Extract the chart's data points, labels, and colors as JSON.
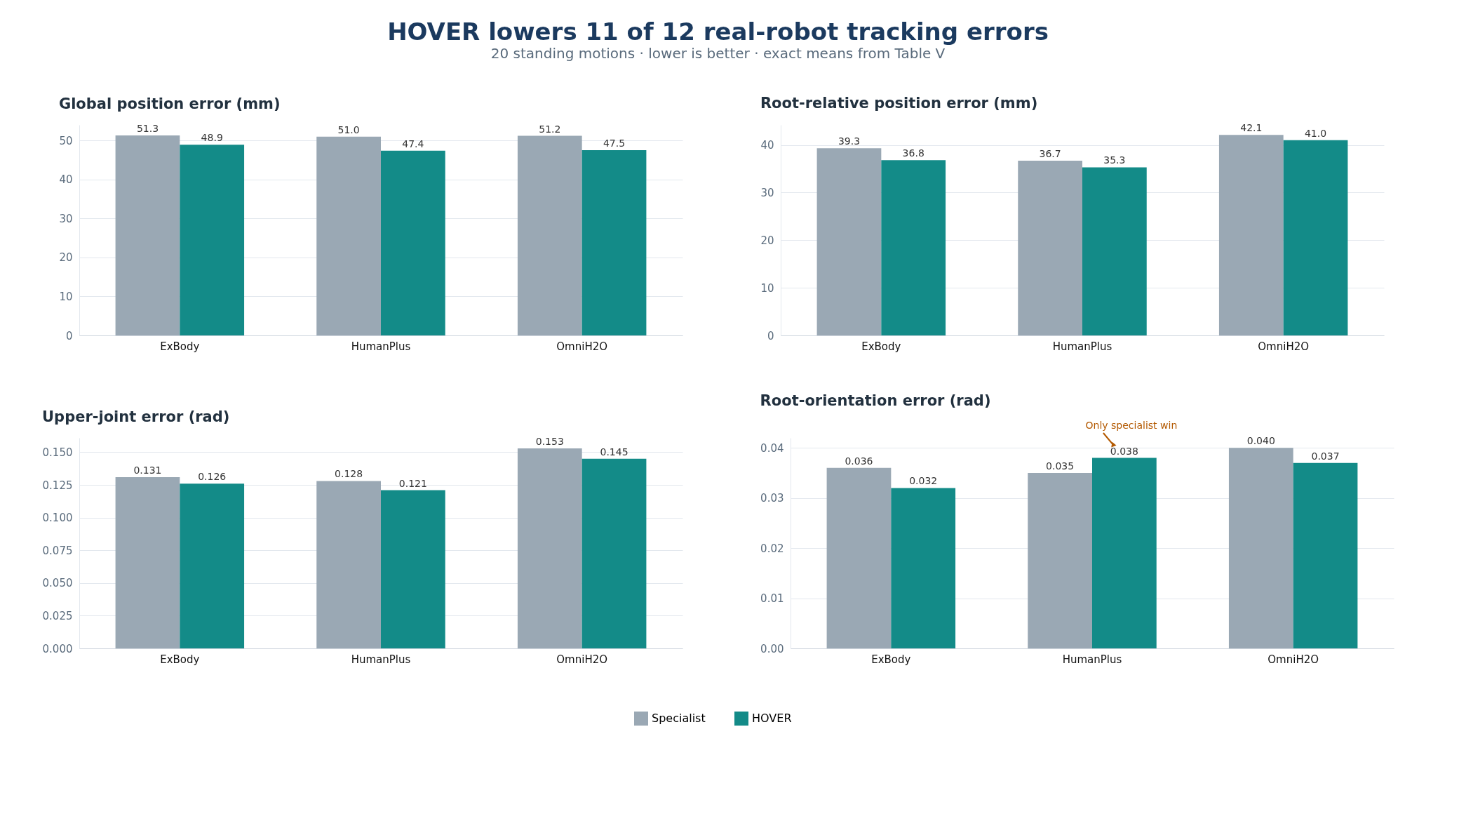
{
  "chart_data": [
    {
      "type": "other",
      "title": "HOVER lowers 11 of 12 real-robot tracking errors",
      "subtitle": "20 standing motions · lower is better · exact means from Table V"
    },
    {
      "type": "bar",
      "title": "Global position error (mm)",
      "categories": [
        "ExBody",
        "HumanPlus",
        "OmniH2O"
      ],
      "ylim": [
        0,
        54
      ],
      "yticks": [
        0,
        10,
        20,
        30,
        40,
        50
      ],
      "grid": "y",
      "legend": "bottom",
      "series": [
        {
          "name": "Specialist",
          "color": "#9aa8b4",
          "values": [
            51.3,
            51.0,
            51.2
          ],
          "value_labels": [
            "51.3",
            "51.0",
            "51.2"
          ]
        },
        {
          "name": "HOVER",
          "color": "#138b88",
          "values": [
            48.9,
            47.4,
            47.5
          ],
          "value_labels": [
            "48.9",
            "47.4",
            "47.5"
          ]
        }
      ]
    },
    {
      "type": "bar",
      "title": "Root-relative position error (mm)",
      "categories": [
        "ExBody",
        "HumanPlus",
        "OmniH2O"
      ],
      "ylim": [
        0,
        44.2
      ],
      "yticks": [
        0,
        10,
        20,
        30,
        40
      ],
      "grid": "y",
      "legend": "bottom",
      "series": [
        {
          "name": "Specialist",
          "color": "#9aa8b4",
          "values": [
            39.3,
            36.7,
            42.1
          ],
          "value_labels": [
            "39.3",
            "36.7",
            "42.1"
          ]
        },
        {
          "name": "HOVER",
          "color": "#138b88",
          "values": [
            36.8,
            35.3,
            41.0
          ],
          "value_labels": [
            "36.8",
            "35.3",
            "41.0"
          ]
        }
      ]
    },
    {
      "type": "bar",
      "title": "Upper-joint error (rad)",
      "categories": [
        "ExBody",
        "HumanPlus",
        "OmniH2O"
      ],
      "ylim": [
        0,
        0.161
      ],
      "yticks": [
        {
          "value": 0,
          "label": "0.000"
        },
        {
          "value": 0.025,
          "label": "0.025"
        },
        {
          "value": 0.05,
          "label": "0.050"
        },
        {
          "value": 0.075,
          "label": "0.075"
        },
        {
          "value": 0.1,
          "label": "0.100"
        },
        {
          "value": 0.125,
          "label": "0.125"
        },
        {
          "value": 0.15,
          "label": "0.150"
        }
      ],
      "grid": "y",
      "legend": "bottom",
      "series": [
        {
          "name": "Specialist",
          "color": "#9aa8b4",
          "values": [
            0.131,
            0.128,
            0.153
          ],
          "value_labels": [
            "0.131",
            "0.128",
            "0.153"
          ]
        },
        {
          "name": "HOVER",
          "color": "#138b88",
          "values": [
            0.126,
            0.121,
            0.145
          ],
          "value_labels": [
            "0.126",
            "0.121",
            "0.145"
          ]
        }
      ]
    },
    {
      "type": "bar",
      "title": "Root-orientation error (rad)",
      "categories": [
        "ExBody",
        "HumanPlus",
        "OmniH2O"
      ],
      "ylim": [
        0,
        0.042
      ],
      "yticks": [
        {
          "value": 0,
          "label": "0.00"
        },
        {
          "value": 0.01,
          "label": "0.01"
        },
        {
          "value": 0.02,
          "label": "0.02"
        },
        {
          "value": 0.03,
          "label": "0.03"
        },
        {
          "value": 0.04,
          "label": "0.04"
        }
      ],
      "grid": "y",
      "legend": "bottom",
      "series": [
        {
          "name": "Specialist",
          "color": "#9aa8b4",
          "values": [
            0.036,
            0.035,
            0.04
          ],
          "value_labels": [
            "0.036",
            "0.035",
            "0.040"
          ]
        },
        {
          "name": "HOVER",
          "color": "#138b88",
          "values": [
            0.032,
            0.038,
            0.037
          ],
          "value_labels": [
            "0.032",
            "0.038",
            "0.037"
          ]
        }
      ],
      "annotations": [
        "Only specialist win"
      ]
    }
  ]
}
